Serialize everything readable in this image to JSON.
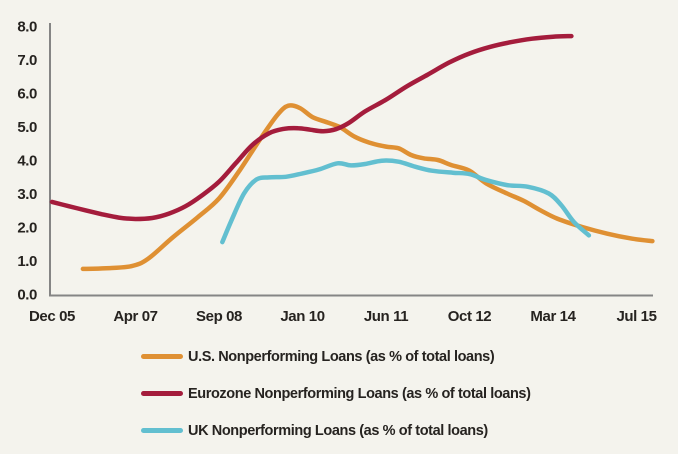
{
  "figure": {
    "background_color": "#F4F3ED",
    "axis_color": "#858585",
    "text_color": "#262320"
  },
  "chart_data": {
    "type": "line",
    "title": "",
    "xlabel": "",
    "ylabel": "",
    "grid": false,
    "legend_position": "bottom",
    "x_tick_labels": [
      "Dec 05",
      "Apr 07",
      "Sep 08",
      "Jan 10",
      "Jun 11",
      "Oct 12",
      "Mar 14",
      "Jul 15"
    ],
    "y_tick_labels": [
      "0.0",
      "1.0",
      "2.0",
      "3.0",
      "4.0",
      "5.0",
      "6.0",
      "7.0",
      "8.0"
    ],
    "ylim": [
      0,
      8
    ],
    "x_domain_tick_units": [
      0,
      7.2
    ],
    "series": [
      {
        "name": "U.S. Nonperforming Loans (as % of total loans)",
        "color": "#DF9033",
        "points": [
          [
            0.37,
            0.75
          ],
          [
            0.65,
            0.77
          ],
          [
            0.95,
            0.83
          ],
          [
            1.15,
            1.05
          ],
          [
            1.45,
            1.7
          ],
          [
            1.75,
            2.3
          ],
          [
            2.0,
            2.85
          ],
          [
            2.25,
            3.7
          ],
          [
            2.5,
            4.65
          ],
          [
            2.7,
            5.35
          ],
          [
            2.83,
            5.62
          ],
          [
            2.97,
            5.55
          ],
          [
            3.12,
            5.28
          ],
          [
            3.3,
            5.12
          ],
          [
            3.45,
            4.98
          ],
          [
            3.62,
            4.7
          ],
          [
            3.8,
            4.52
          ],
          [
            4.0,
            4.4
          ],
          [
            4.15,
            4.35
          ],
          [
            4.3,
            4.15
          ],
          [
            4.45,
            4.05
          ],
          [
            4.62,
            4.0
          ],
          [
            4.78,
            3.85
          ],
          [
            5.0,
            3.68
          ],
          [
            5.2,
            3.3
          ],
          [
            5.45,
            3.0
          ],
          [
            5.65,
            2.78
          ],
          [
            5.85,
            2.5
          ],
          [
            6.05,
            2.25
          ],
          [
            6.35,
            2.0
          ],
          [
            6.65,
            1.8
          ],
          [
            6.95,
            1.65
          ],
          [
            7.19,
            1.58
          ]
        ]
      },
      {
        "name": "Eurozone Nonperforming Loans (as % of total loans)",
        "color": "#A41C3C",
        "points": [
          [
            0.0,
            2.75
          ],
          [
            0.2,
            2.62
          ],
          [
            0.4,
            2.5
          ],
          [
            0.6,
            2.38
          ],
          [
            0.8,
            2.28
          ],
          [
            1.0,
            2.24
          ],
          [
            1.2,
            2.27
          ],
          [
            1.4,
            2.4
          ],
          [
            1.6,
            2.62
          ],
          [
            1.8,
            2.95
          ],
          [
            2.0,
            3.35
          ],
          [
            2.2,
            3.9
          ],
          [
            2.4,
            4.45
          ],
          [
            2.6,
            4.8
          ],
          [
            2.78,
            4.93
          ],
          [
            2.95,
            4.95
          ],
          [
            3.1,
            4.9
          ],
          [
            3.25,
            4.86
          ],
          [
            3.4,
            4.92
          ],
          [
            3.55,
            5.1
          ],
          [
            3.75,
            5.45
          ],
          [
            4.0,
            5.8
          ],
          [
            4.25,
            6.2
          ],
          [
            4.5,
            6.55
          ],
          [
            4.75,
            6.9
          ],
          [
            5.0,
            7.18
          ],
          [
            5.25,
            7.38
          ],
          [
            5.5,
            7.52
          ],
          [
            5.75,
            7.62
          ],
          [
            6.0,
            7.68
          ],
          [
            6.22,
            7.7
          ]
        ]
      },
      {
        "name": "UK Nonperforming Loans (as % of total loans)",
        "color": "#62BFD0",
        "points": [
          [
            2.04,
            1.55
          ],
          [
            2.15,
            2.2
          ],
          [
            2.3,
            3.0
          ],
          [
            2.45,
            3.42
          ],
          [
            2.6,
            3.48
          ],
          [
            2.8,
            3.5
          ],
          [
            3.0,
            3.6
          ],
          [
            3.2,
            3.72
          ],
          [
            3.42,
            3.9
          ],
          [
            3.58,
            3.84
          ],
          [
            3.75,
            3.88
          ],
          [
            3.95,
            3.98
          ],
          [
            4.15,
            3.95
          ],
          [
            4.35,
            3.8
          ],
          [
            4.55,
            3.68
          ],
          [
            4.8,
            3.62
          ],
          [
            5.0,
            3.58
          ],
          [
            5.2,
            3.4
          ],
          [
            5.45,
            3.25
          ],
          [
            5.7,
            3.2
          ],
          [
            5.95,
            3.0
          ],
          [
            6.1,
            2.65
          ],
          [
            6.25,
            2.15
          ],
          [
            6.43,
            1.75
          ]
        ]
      }
    ]
  }
}
